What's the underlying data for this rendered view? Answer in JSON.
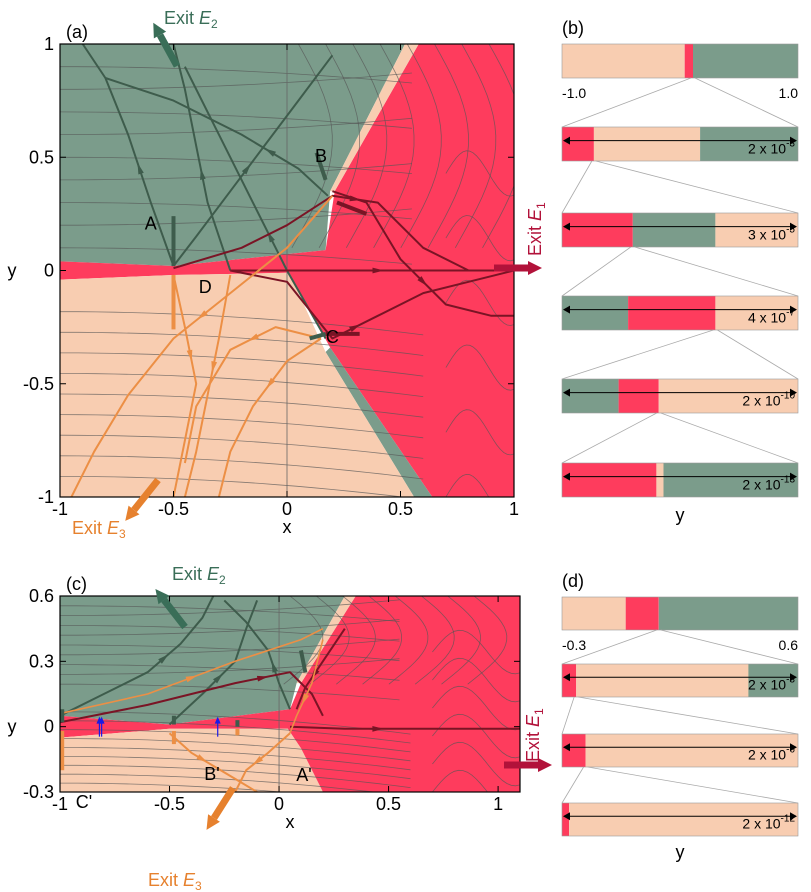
{
  "colors": {
    "green": "#7b9c8b",
    "red": "#fe3c5d",
    "peach": "#f8cdb1",
    "orange": "#ec8f45",
    "darkgreen": "#3e5c4c",
    "darkred": "#7a1425",
    "exit_green": "#3a6e58",
    "exit_orange": "#e6812e",
    "exit_red": "#b2123a",
    "frame": "#000000"
  },
  "chart_data": [
    {
      "type": "heatmap",
      "panel": "(a)",
      "xlim": [
        -1,
        1
      ],
      "ylim": [
        -1,
        1
      ],
      "xticks": [
        "-1",
        "-0.5",
        "0",
        "0.5",
        "1"
      ],
      "yticks": [
        "-1",
        "-0.5",
        "0",
        "0.5",
        "1"
      ],
      "xlabel": "x",
      "ylabel": "y",
      "xtickvals": [
        -1,
        -0.5,
        0,
        0.5,
        1
      ],
      "ytickvals": [
        -1,
        -0.5,
        0,
        0.5,
        1
      ],
      "regions": [
        {
          "color": "green",
          "pts": [
            [
              -1,
              1
            ],
            [
              0.52,
              1
            ],
            [
              0.19,
              0.35
            ],
            [
              0.17,
              0.09
            ],
            [
              -0.5,
              0.02
            ],
            [
              -1,
              0.04
            ]
          ]
        },
        {
          "color": "red",
          "pts": [
            [
              0.58,
              1
            ],
            [
              1,
              1
            ],
            [
              1,
              -1
            ],
            [
              0.64,
              -1
            ],
            [
              0.19,
              -0.34
            ],
            [
              0.01,
              -0.01
            ],
            [
              -0.5,
              -0.02
            ],
            [
              -1,
              -0.04
            ],
            [
              -1,
              0.04
            ],
            [
              -0.5,
              0.02
            ],
            [
              0.17,
              0.09
            ],
            [
              0.21,
              0.35
            ]
          ]
        },
        {
          "color": "green",
          "pts": [
            [
              0.64,
              -1
            ],
            [
              0.56,
              -1
            ],
            [
              0.17,
              -0.36
            ],
            [
              0.19,
              -0.34
            ]
          ]
        },
        {
          "color": "peach",
          "pts": [
            [
              -1,
              -0.04
            ],
            [
              -0.5,
              -0.02
            ],
            [
              0.01,
              -0.01
            ],
            [
              0.17,
              -0.36
            ],
            [
              0.56,
              -1
            ],
            [
              -1,
              -1
            ]
          ]
        },
        {
          "color": "peach",
          "pts": [
            [
              0.52,
              1
            ],
            [
              0.58,
              1
            ],
            [
              0.21,
              0.35
            ],
            [
              0.19,
              0.35
            ]
          ]
        }
      ],
      "labels": [
        {
          "text": "A",
          "x": -0.6,
          "y": 0.18
        },
        {
          "text": "B",
          "x": 0.15,
          "y": 0.48
        },
        {
          "text": "C",
          "x": 0.2,
          "y": -0.32
        },
        {
          "text": "D",
          "x": -0.36,
          "y": -0.1
        }
      ],
      "exits": [
        {
          "prefix": "Exit ",
          "sym": "E",
          "sub": "2",
          "color": "exit_green"
        },
        {
          "prefix": "Exit ",
          "sym": "E",
          "sub": "3",
          "color": "exit_orange"
        },
        {
          "prefix": "Exit ",
          "sym": "E",
          "sub": "1",
          "color": "exit_red"
        }
      ]
    },
    {
      "type": "bar",
      "panel": "(b)",
      "xlabel": "y",
      "range_labels": [
        "-1.0",
        "1.0"
      ],
      "rows": [
        {
          "scale": null,
          "segments": [
            [
              "peach",
              0.52
            ],
            [
              "red",
              0.035
            ],
            [
              "green",
              0.445
            ]
          ]
        },
        {
          "scale": "2 x 10^-3",
          "segments": [
            [
              "red",
              0.135
            ],
            [
              "peach",
              0.45
            ],
            [
              "green",
              0.415
            ]
          ]
        },
        {
          "scale": "3 x 10^-5",
          "segments": [
            [
              "red",
              0.3
            ],
            [
              "green",
              0.35
            ],
            [
              "peach",
              0.35
            ]
          ]
        },
        {
          "scale": "4 x 10^-7",
          "segments": [
            [
              "green",
              0.28
            ],
            [
              "red",
              0.37
            ],
            [
              "peach",
              0.35
            ]
          ]
        },
        {
          "scale": "2 x 10^-10",
          "segments": [
            [
              "green",
              0.24
            ],
            [
              "red",
              0.17
            ],
            [
              "peach",
              0.59
            ]
          ]
        },
        {
          "scale": "2 x 10^-13",
          "segments": [
            [
              "red",
              0.4
            ],
            [
              "peach",
              0.03
            ],
            [
              "green",
              0.57
            ]
          ]
        }
      ]
    },
    {
      "type": "heatmap",
      "panel": "(c)",
      "xlim": [
        -1,
        1.1
      ],
      "ylim": [
        -0.3,
        0.6
      ],
      "xticks": [
        "-1",
        "-0.5",
        "0",
        "0.5",
        "1"
      ],
      "yticks": [
        "-0.3",
        "0",
        "0.3",
        "0.6"
      ],
      "xlabel": "x",
      "ylabel": "y",
      "xtickvals": [
        -1,
        -0.5,
        0,
        0.5,
        1
      ],
      "ytickvals": [
        -0.3,
        0,
        0.3,
        0.6
      ],
      "regions": [
        {
          "color": "green",
          "pts": [
            [
              -1,
              0.6
            ],
            [
              0.3,
              0.6
            ],
            [
              0.08,
              0.2
            ],
            [
              0.05,
              0.08
            ],
            [
              -0.5,
              0.01
            ],
            [
              -1,
              0.05
            ]
          ]
        },
        {
          "color": "red",
          "pts": [
            [
              0.35,
              0.6
            ],
            [
              1.1,
              0.6
            ],
            [
              1.1,
              -0.3
            ],
            [
              0.2,
              -0.3
            ],
            [
              0.1,
              -0.1
            ],
            [
              0.04,
              -0.01
            ],
            [
              -0.5,
              -0.01
            ],
            [
              -1,
              -0.05
            ],
            [
              -1,
              0.05
            ],
            [
              -0.5,
              0.01
            ],
            [
              0.05,
              0.08
            ],
            [
              0.1,
              0.2
            ]
          ]
        },
        {
          "color": "peach",
          "pts": [
            [
              -1,
              -0.05
            ],
            [
              -0.5,
              -0.01
            ],
            [
              0.04,
              -0.01
            ],
            [
              0.1,
              -0.1
            ],
            [
              0.2,
              -0.3
            ],
            [
              -1,
              -0.3
            ]
          ]
        },
        {
          "color": "peach",
          "pts": [
            [
              0.3,
              0.6
            ],
            [
              0.35,
              0.6
            ],
            [
              0.1,
              0.2
            ],
            [
              0.08,
              0.2
            ]
          ]
        }
      ],
      "labels": [
        {
          "text": "A'",
          "x": -0.2,
          "y": -0.05
        },
        {
          "text": "B'",
          "x": -0.48,
          "y": -0.13
        },
        {
          "text": "C'",
          "x": -0.92,
          "y": -0.24
        }
      ],
      "exits": [
        {
          "prefix": "Exit ",
          "sym": "E",
          "sub": "2",
          "color": "exit_green"
        },
        {
          "prefix": "Exit ",
          "sym": "E",
          "sub": "3",
          "color": "exit_orange"
        },
        {
          "prefix": "Exit ",
          "sym": "E",
          "sub": "1",
          "color": "exit_red"
        }
      ]
    },
    {
      "type": "bar",
      "panel": "(d)",
      "xlabel": "y",
      "range_labels": [
        "-0.3",
        "0.6"
      ],
      "rows": [
        {
          "scale": null,
          "segments": [
            [
              "peach",
              0.27
            ],
            [
              "red",
              0.14
            ],
            [
              "green",
              0.59
            ]
          ]
        },
        {
          "scale": "2 x 10^-3",
          "segments": [
            [
              "red",
              0.06
            ],
            [
              "peach",
              0.73
            ],
            [
              "green",
              0.21
            ]
          ]
        },
        {
          "scale": "2 x 10^-6",
          "segments": [
            [
              "red",
              0.1
            ],
            [
              "peach",
              0.9
            ]
          ]
        },
        {
          "scale": "2 x 10^-12",
          "segments": [
            [
              "red",
              0.03
            ],
            [
              "peach",
              0.97
            ]
          ]
        }
      ]
    }
  ]
}
